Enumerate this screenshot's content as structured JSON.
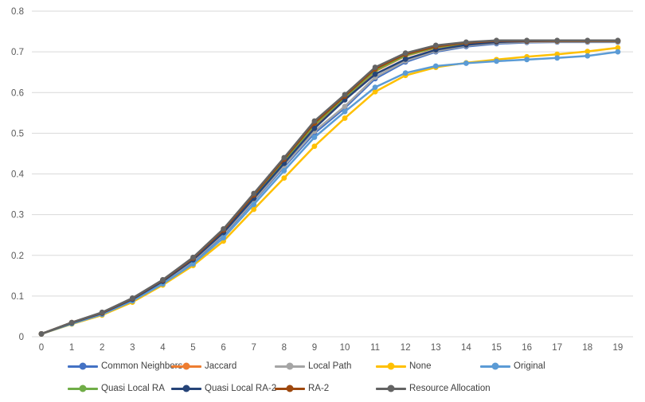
{
  "chart_data": {
    "type": "line",
    "title": "",
    "xlabel": "",
    "ylabel": "",
    "x": [
      0,
      1,
      2,
      3,
      4,
      5,
      6,
      7,
      8,
      9,
      10,
      11,
      12,
      13,
      14,
      15,
      16,
      17,
      18,
      19
    ],
    "x_tick_labels": [
      "0",
      "1",
      "2",
      "3",
      "4",
      "5",
      "6",
      "7",
      "8",
      "9",
      "10",
      "11",
      "12",
      "13",
      "14",
      "15",
      "16",
      "17",
      "18",
      "19"
    ],
    "ylim": [
      0,
      0.8
    ],
    "y_ticks": [
      0,
      0.1,
      0.2,
      0.3,
      0.4,
      0.5,
      0.6,
      0.7,
      0.8
    ],
    "y_tick_labels": [
      "0",
      "0.1",
      "0.2",
      "0.3",
      "0.4",
      "0.5",
      "0.6",
      "0.7",
      "0.8"
    ],
    "grid": "horizontal",
    "legend_position": "bottom",
    "marker": "circle",
    "series": [
      {
        "name": "Common Neighbors",
        "color": "#4472C4",
        "values": [
          0.007,
          0.033,
          0.057,
          0.09,
          0.133,
          0.184,
          0.25,
          0.333,
          0.417,
          0.5,
          0.562,
          0.634,
          0.675,
          0.7,
          0.713,
          0.72,
          0.723,
          0.724,
          0.724,
          0.724
        ]
      },
      {
        "name": "Jaccard",
        "color": "#ED7D31",
        "values": [
          0.007,
          0.034,
          0.058,
          0.093,
          0.137,
          0.19,
          0.258,
          0.343,
          0.43,
          0.518,
          0.586,
          0.652,
          0.69,
          0.71,
          0.72,
          0.726,
          0.726,
          0.727,
          0.727,
          0.727
        ]
      },
      {
        "name": "Local Path",
        "color": "#A5A5A5",
        "values": [
          0.007,
          0.033,
          0.057,
          0.091,
          0.134,
          0.186,
          0.252,
          0.335,
          0.42,
          0.505,
          0.566,
          0.638,
          0.678,
          0.702,
          0.715,
          0.722,
          0.724,
          0.725,
          0.725,
          0.725
        ]
      },
      {
        "name": "None",
        "color": "#FFC000",
        "values": [
          0.007,
          0.031,
          0.053,
          0.085,
          0.127,
          0.175,
          0.235,
          0.313,
          0.39,
          0.468,
          0.537,
          0.602,
          0.642,
          0.662,
          0.673,
          0.681,
          0.688,
          0.694,
          0.701,
          0.71
        ]
      },
      {
        "name": "Original",
        "color": "#5B9BD5",
        "values": [
          0.007,
          0.032,
          0.055,
          0.088,
          0.13,
          0.179,
          0.243,
          0.325,
          0.408,
          0.49,
          0.553,
          0.613,
          0.648,
          0.665,
          0.672,
          0.677,
          0.681,
          0.685,
          0.69,
          0.7
        ]
      },
      {
        "name": "Quasi Local RA",
        "color": "#70AD47",
        "values": [
          0.007,
          0.034,
          0.059,
          0.093,
          0.138,
          0.191,
          0.26,
          0.345,
          0.432,
          0.521,
          0.588,
          0.654,
          0.691,
          0.711,
          0.721,
          0.726,
          0.727,
          0.727,
          0.727,
          0.727
        ]
      },
      {
        "name": "Quasi Local RA-2",
        "color": "#264478",
        "values": [
          0.007,
          0.034,
          0.058,
          0.092,
          0.136,
          0.189,
          0.256,
          0.34,
          0.426,
          0.512,
          0.582,
          0.645,
          0.682,
          0.705,
          0.717,
          0.724,
          0.726,
          0.727,
          0.727,
          0.727
        ]
      },
      {
        "name": "RA-2",
        "color": "#9E480E",
        "values": [
          0.007,
          0.035,
          0.059,
          0.094,
          0.139,
          0.193,
          0.262,
          0.348,
          0.436,
          0.525,
          0.591,
          0.658,
          0.694,
          0.713,
          0.722,
          0.727,
          0.727,
          0.727,
          0.727,
          0.727
        ]
      },
      {
        "name": "Resource Allocation",
        "color": "#636363",
        "values": [
          0.007,
          0.035,
          0.06,
          0.095,
          0.14,
          0.195,
          0.265,
          0.352,
          0.44,
          0.53,
          0.595,
          0.662,
          0.697,
          0.716,
          0.724,
          0.728,
          0.728,
          0.728,
          0.728,
          0.728
        ]
      }
    ],
    "legend_rows": [
      [
        "Common Neighbors",
        "Jaccard",
        "Local Path",
        "None",
        "Original"
      ],
      [
        "Quasi Local RA",
        "Quasi Local RA-2",
        "RA-2",
        "Resource Allocation"
      ]
    ]
  },
  "style_colors": {
    "gridline": "#D9D9D9",
    "axis_line": "#D9D9D9",
    "tick_label": "#595959",
    "legend_label": "#404040"
  }
}
